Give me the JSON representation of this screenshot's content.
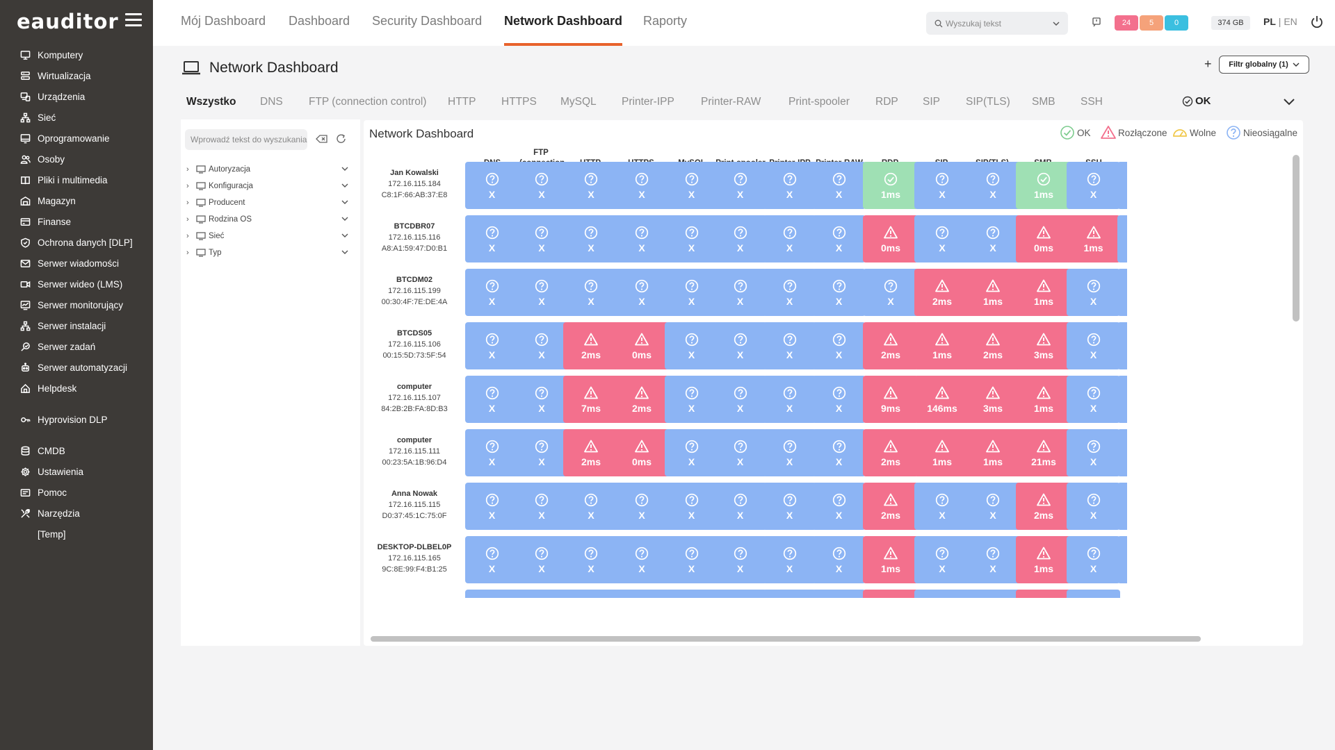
{
  "app": {
    "logo": "eauditor"
  },
  "sidebar": {
    "items": [
      {
        "label": "Komputery",
        "icon": "monitor-icon"
      },
      {
        "label": "Wirtualizacja",
        "icon": "server-icon"
      },
      {
        "label": "Urządzenia",
        "icon": "devices-icon"
      },
      {
        "label": "Sieć",
        "icon": "network-icon"
      },
      {
        "label": "Oprogramowanie",
        "icon": "software-icon"
      },
      {
        "label": "Osoby",
        "icon": "people-icon"
      },
      {
        "label": "Pliki i multimedia",
        "icon": "book-icon"
      },
      {
        "label": "Magazyn",
        "icon": "warehouse-icon"
      },
      {
        "label": "Finanse",
        "icon": "finance-icon"
      },
      {
        "label": "Ochrona danych [DLP]",
        "icon": "shield-icon"
      },
      {
        "label": "Serwer wiadomości",
        "icon": "mail-icon"
      },
      {
        "label": "Serwer wideo (LMS)",
        "icon": "video-icon"
      },
      {
        "label": "Serwer monitorujący",
        "icon": "monitor-chart-icon"
      },
      {
        "label": "Serwer instalacji",
        "icon": "install-icon"
      },
      {
        "label": "Serwer zadań",
        "icon": "tasks-icon"
      },
      {
        "label": "Serwer automatyzacji",
        "icon": "automation-icon"
      },
      {
        "label": "Helpdesk",
        "icon": "helpdesk-icon"
      },
      {
        "label": "Hyprovision DLP",
        "icon": "key-icon"
      },
      {
        "label": "CMDB",
        "icon": "database-icon"
      },
      {
        "label": "Ustawienia",
        "icon": "gear-icon"
      },
      {
        "label": "Pomoc",
        "icon": "help-icon"
      },
      {
        "label": "Narzędzia",
        "icon": "tools-icon"
      },
      {
        "label": "[Temp]",
        "icon": ""
      }
    ]
  },
  "topbar": {
    "tabs": [
      "Mój Dashboard",
      "Dashboard",
      "Security Dashboard",
      "Network Dashboard",
      "Raporty"
    ],
    "active_tab": "Network Dashboard",
    "search_placeholder": "Wyszukaj tekst",
    "badges": [
      {
        "value": "24",
        "color": "#f3708d"
      },
      {
        "value": "5",
        "color": "#f5a27a"
      },
      {
        "value": "0",
        "color": "#3bbfe0"
      }
    ],
    "disk": "374 GB",
    "lang_active": "PL",
    "lang_sep": " | ",
    "lang_other": "EN"
  },
  "page": {
    "title": "Network Dashboard",
    "plus": "+",
    "filter_label": "Filtr globalny (1)"
  },
  "service_tabs": [
    "Wszystko",
    "DNS",
    "FTP (connection control)",
    "HTTP",
    "HTTPS",
    "MySQL",
    "Printer-IPP",
    "Printer-RAW",
    "Print-spooler",
    "RDP",
    "SIP",
    "SIP(TLS)",
    "SMB",
    "SSH"
  ],
  "ok_filter": "OK",
  "left_panel": {
    "search_placeholder": "Wprowadź tekst do wyszukania",
    "tree": [
      "Autoryzacja",
      "Konfiguracja",
      "Producent",
      "Rodzina OS",
      "Sieć",
      "Typ"
    ]
  },
  "main": {
    "title": "Network Dashboard",
    "legend": [
      {
        "label": "OK",
        "color": "#7dcc8e"
      },
      {
        "label": "Rozłączone",
        "color": "#f3708d"
      },
      {
        "label": "Wolne",
        "color": "#f0c84a"
      },
      {
        "label": "Nieosiągalne",
        "color": "#8cb4f4"
      }
    ],
    "columns": [
      "DNS",
      "FTP (connection control)",
      "HTTP",
      "HTTPS",
      "MySQL",
      "Print-spooler",
      "Printer-IPP",
      "Printer-RAW",
      "RDP",
      "SIP",
      "SIP(TLS)",
      "SMB",
      "SSH"
    ],
    "rows": [
      {
        "name": "Jan Kowalski",
        "ip": "172.16.115.184",
        "mac": "C8:1F:66:AB:37:E8",
        "cells": [
          [
            "na",
            "X"
          ],
          [
            "na",
            "X"
          ],
          [
            "na",
            "X"
          ],
          [
            "na",
            "X"
          ],
          [
            "na",
            "X"
          ],
          [
            "na",
            "X"
          ],
          [
            "na",
            "X"
          ],
          [
            "na",
            "X"
          ],
          [
            "ok",
            "1ms"
          ],
          [
            "na",
            "X"
          ],
          [
            "na",
            "X"
          ],
          [
            "ok",
            "1ms"
          ],
          [
            "na",
            "X"
          ]
        ]
      },
      {
        "name": "BTCDBR07",
        "ip": "172.16.115.116",
        "mac": "A8:A1:59:47:D0:B1",
        "cells": [
          [
            "na",
            "X"
          ],
          [
            "na",
            "X"
          ],
          [
            "na",
            "X"
          ],
          [
            "na",
            "X"
          ],
          [
            "na",
            "X"
          ],
          [
            "na",
            "X"
          ],
          [
            "na",
            "X"
          ],
          [
            "na",
            "X"
          ],
          [
            "err",
            "0ms"
          ],
          [
            "na",
            "X"
          ],
          [
            "na",
            "X"
          ],
          [
            "err",
            "0ms"
          ],
          [
            "err",
            "1ms"
          ]
        ]
      },
      {
        "name": "BTCDM02",
        "ip": "172.16.115.199",
        "mac": "00:30:4F:7E:DE:4A",
        "cells": [
          [
            "na",
            "X"
          ],
          [
            "na",
            "X"
          ],
          [
            "na",
            "X"
          ],
          [
            "na",
            "X"
          ],
          [
            "na",
            "X"
          ],
          [
            "na",
            "X"
          ],
          [
            "na",
            "X"
          ],
          [
            "na",
            "X"
          ],
          [
            "na",
            "X"
          ],
          [
            "err",
            "2ms"
          ],
          [
            "err",
            "1ms"
          ],
          [
            "err",
            "1ms"
          ],
          [
            "na",
            "X"
          ]
        ]
      },
      {
        "name": "BTCDS05",
        "ip": "172.16.115.106",
        "mac": "00:15:5D:73:5F:54",
        "cells": [
          [
            "na",
            "X"
          ],
          [
            "na",
            "X"
          ],
          [
            "err",
            "2ms"
          ],
          [
            "err",
            "0ms"
          ],
          [
            "na",
            "X"
          ],
          [
            "na",
            "X"
          ],
          [
            "na",
            "X"
          ],
          [
            "na",
            "X"
          ],
          [
            "err",
            "2ms"
          ],
          [
            "err",
            "1ms"
          ],
          [
            "err",
            "2ms"
          ],
          [
            "err",
            "3ms"
          ],
          [
            "na",
            "X"
          ]
        ]
      },
      {
        "name": "computer",
        "ip": "172.16.115.107",
        "mac": "84:2B:2B:FA:8D:B3",
        "cells": [
          [
            "na",
            "X"
          ],
          [
            "na",
            "X"
          ],
          [
            "err",
            "7ms"
          ],
          [
            "err",
            "2ms"
          ],
          [
            "na",
            "X"
          ],
          [
            "na",
            "X"
          ],
          [
            "na",
            "X"
          ],
          [
            "na",
            "X"
          ],
          [
            "err",
            "9ms"
          ],
          [
            "err",
            "146ms"
          ],
          [
            "err",
            "3ms"
          ],
          [
            "err",
            "1ms"
          ],
          [
            "na",
            "X"
          ]
        ]
      },
      {
        "name": "computer",
        "ip": "172.16.115.111",
        "mac": "00:23:5A:1B:96:D4",
        "cells": [
          [
            "na",
            "X"
          ],
          [
            "na",
            "X"
          ],
          [
            "err",
            "2ms"
          ],
          [
            "err",
            "0ms"
          ],
          [
            "na",
            "X"
          ],
          [
            "na",
            "X"
          ],
          [
            "na",
            "X"
          ],
          [
            "na",
            "X"
          ],
          [
            "err",
            "2ms"
          ],
          [
            "err",
            "1ms"
          ],
          [
            "err",
            "1ms"
          ],
          [
            "err",
            "21ms"
          ],
          [
            "na",
            "X"
          ]
        ]
      },
      {
        "name": "Anna Nowak",
        "ip": "172.16.115.115",
        "mac": "D0:37:45:1C:75:0F",
        "cells": [
          [
            "na",
            "X"
          ],
          [
            "na",
            "X"
          ],
          [
            "na",
            "X"
          ],
          [
            "na",
            "X"
          ],
          [
            "na",
            "X"
          ],
          [
            "na",
            "X"
          ],
          [
            "na",
            "X"
          ],
          [
            "na",
            "X"
          ],
          [
            "err",
            "2ms"
          ],
          [
            "na",
            "X"
          ],
          [
            "na",
            "X"
          ],
          [
            "err",
            "2ms"
          ],
          [
            "na",
            "X"
          ]
        ]
      },
      {
        "name": "DESKTOP-DLBEL0P",
        "ip": "172.16.115.165",
        "mac": "9C:8E:99:F4:B1:25",
        "cells": [
          [
            "na",
            "X"
          ],
          [
            "na",
            "X"
          ],
          [
            "na",
            "X"
          ],
          [
            "na",
            "X"
          ],
          [
            "na",
            "X"
          ],
          [
            "na",
            "X"
          ],
          [
            "na",
            "X"
          ],
          [
            "na",
            "X"
          ],
          [
            "err",
            "1ms"
          ],
          [
            "na",
            "X"
          ],
          [
            "na",
            "X"
          ],
          [
            "err",
            "1ms"
          ],
          [
            "na",
            "X"
          ]
        ]
      }
    ]
  }
}
